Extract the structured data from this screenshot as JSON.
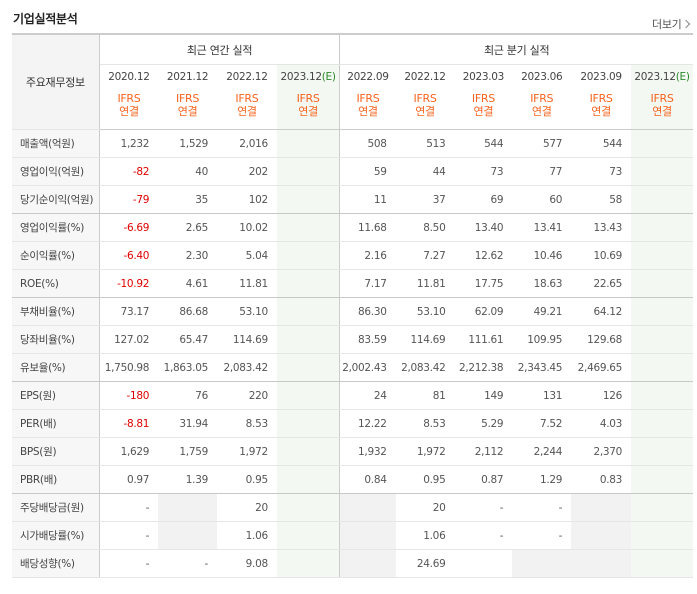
{
  "header": {
    "title": "기업실적분석",
    "more_label": "더보기"
  },
  "table": {
    "label_header": "주요재무정보",
    "annual_title": "최근 연간 실적",
    "quarter_title": "최근 분기 실적",
    "annual_periods": [
      "2020.12",
      "2021.12",
      "2022.12",
      "2023.12(E)"
    ],
    "quarter_periods": [
      "2022.09",
      "2022.12",
      "2023.03",
      "2023.06",
      "2023.09",
      "2023.12(E)"
    ],
    "ifrs_top": "IFRS",
    "ifrs_bottom": "연결",
    "rows": [
      {
        "label": "매출액(억원)",
        "values": [
          "1,232",
          "1,529",
          "2,016",
          "",
          "508",
          "513",
          "544",
          "577",
          "544",
          ""
        ]
      },
      {
        "label": "영업이익(억원)",
        "values": [
          "-82",
          "40",
          "202",
          "",
          "59",
          "44",
          "73",
          "77",
          "73",
          ""
        ]
      },
      {
        "label": "당기순이익(억원)",
        "values": [
          "-79",
          "35",
          "102",
          "",
          "11",
          "37",
          "69",
          "60",
          "58",
          ""
        ]
      },
      {
        "label": "영업이익률(%)",
        "values": [
          "-6.69",
          "2.65",
          "10.02",
          "",
          "11.68",
          "8.50",
          "13.40",
          "13.41",
          "13.43",
          ""
        ]
      },
      {
        "label": "순이익률(%)",
        "values": [
          "-6.40",
          "2.30",
          "5.04",
          "",
          "2.16",
          "7.27",
          "12.62",
          "10.46",
          "10.69",
          ""
        ]
      },
      {
        "label": "ROE(%)",
        "values": [
          "-10.92",
          "4.61",
          "11.81",
          "",
          "7.17",
          "11.81",
          "17.75",
          "18.63",
          "22.65",
          ""
        ]
      },
      {
        "label": "부채비율(%)",
        "values": [
          "73.17",
          "86.68",
          "53.10",
          "",
          "86.30",
          "53.10",
          "62.09",
          "49.21",
          "64.12",
          ""
        ]
      },
      {
        "label": "당좌비율(%)",
        "values": [
          "127.02",
          "65.47",
          "114.69",
          "",
          "83.59",
          "114.69",
          "111.61",
          "109.95",
          "129.68",
          ""
        ]
      },
      {
        "label": "유보율(%)",
        "values": [
          "1,750.98",
          "1,863.05",
          "2,083.42",
          "",
          "2,002.43",
          "2,083.42",
          "2,212.38",
          "2,343.45",
          "2,469.65",
          ""
        ]
      },
      {
        "label": "EPS(원)",
        "values": [
          "-180",
          "76",
          "220",
          "",
          "24",
          "81",
          "149",
          "131",
          "126",
          ""
        ]
      },
      {
        "label": "PER(배)",
        "values": [
          "-8.81",
          "31.94",
          "8.53",
          "",
          "12.22",
          "8.53",
          "5.29",
          "7.52",
          "4.03",
          ""
        ]
      },
      {
        "label": "BPS(원)",
        "values": [
          "1,629",
          "1,759",
          "1,972",
          "",
          "1,932",
          "1,972",
          "2,112",
          "2,244",
          "2,370",
          ""
        ]
      },
      {
        "label": "PBR(배)",
        "values": [
          "0.97",
          "1.39",
          "0.95",
          "",
          "0.84",
          "0.95",
          "0.87",
          "1.29",
          "0.83",
          ""
        ]
      },
      {
        "label": "주당배당금(원)",
        "values": [
          "-",
          "",
          "20",
          "",
          "",
          "20",
          "-",
          "-",
          "",
          ""
        ]
      },
      {
        "label": "시가배당률(%)",
        "values": [
          "-",
          "",
          "1.06",
          "",
          "",
          "1.06",
          "-",
          "-",
          "",
          ""
        ]
      },
      {
        "label": "배당성향(%)",
        "values": [
          "-",
          "-",
          "9.08",
          "",
          "",
          "24.69",
          "",
          "",
          "",
          ""
        ]
      }
    ]
  },
  "colors": {
    "negative": "#e00000",
    "ifrs": "#f7631e",
    "estimate_bg": "#f3f8f3",
    "estimate_text": "#2b8a2b"
  }
}
